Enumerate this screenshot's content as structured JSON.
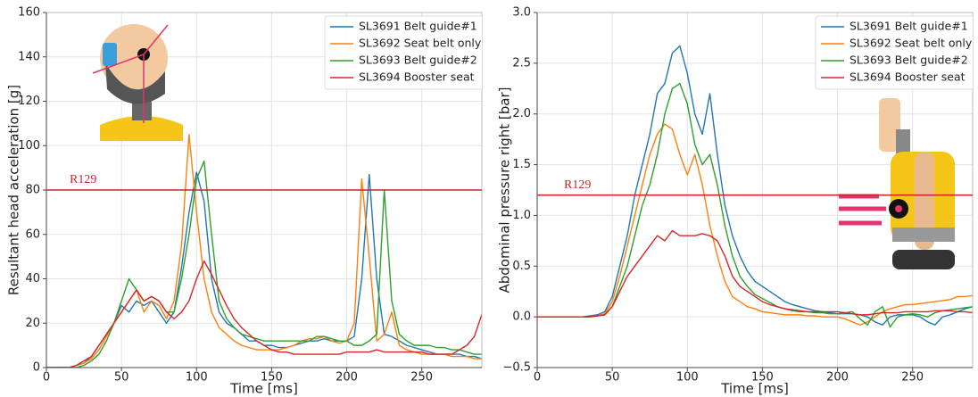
{
  "chart_data": [
    {
      "type": "line",
      "xlabel": "Time [ms]",
      "ylabel": "Resultant head acceleration [g]",
      "x": [
        0,
        5,
        10,
        15,
        20,
        25,
        30,
        35,
        40,
        45,
        50,
        55,
        60,
        65,
        70,
        75,
        80,
        85,
        90,
        95,
        100,
        105,
        110,
        115,
        120,
        125,
        130,
        135,
        140,
        145,
        150,
        155,
        160,
        165,
        170,
        175,
        180,
        185,
        190,
        195,
        200,
        205,
        210,
        215,
        220,
        225,
        230,
        235,
        240,
        245,
        250,
        255,
        260,
        265,
        270,
        275,
        280,
        285,
        290
      ],
      "xlim": [
        0,
        290
      ],
      "xticks": [
        0,
        50,
        100,
        150,
        200,
        250
      ],
      "ylim": [
        0,
        160
      ],
      "yticks": [
        0,
        20,
        40,
        60,
        80,
        100,
        120,
        140,
        160
      ],
      "grid": true,
      "legend": "upper right",
      "reference": {
        "value": 80,
        "label": "R129",
        "color": "#c0282d"
      },
      "series": [
        {
          "name": "SL3691 Belt guide#1",
          "color": "#1f77b4",
          "values": [
            0,
            0,
            0,
            0,
            1,
            2,
            5,
            10,
            15,
            20,
            28,
            25,
            30,
            28,
            30,
            25,
            20,
            25,
            45,
            70,
            88,
            75,
            40,
            25,
            20,
            18,
            15,
            12,
            12,
            10,
            10,
            9,
            9,
            10,
            11,
            12,
            12,
            13,
            12,
            12,
            12,
            14,
            40,
            87,
            40,
            15,
            14,
            12,
            10,
            9,
            8,
            7,
            6,
            6,
            6,
            6,
            5,
            5,
            4
          ]
        },
        {
          "name": "SL3692 Seat belt only",
          "color": "#ff7f0e",
          "values": [
            0,
            0,
            0,
            0,
            1,
            2,
            4,
            8,
            14,
            20,
            25,
            30,
            35,
            25,
            30,
            28,
            22,
            30,
            55,
            105,
            70,
            40,
            25,
            18,
            15,
            12,
            10,
            9,
            8,
            8,
            8,
            8,
            9,
            10,
            12,
            13,
            13,
            14,
            12,
            11,
            12,
            20,
            85,
            50,
            12,
            15,
            25,
            10,
            8,
            7,
            6,
            6,
            6,
            6,
            5,
            5,
            5,
            4,
            4
          ]
        },
        {
          "name": "SL3693 Belt guide#2",
          "color": "#2ca02c",
          "values": [
            0,
            0,
            0,
            0,
            0,
            1,
            3,
            6,
            12,
            20,
            30,
            40,
            35,
            30,
            32,
            30,
            25,
            25,
            40,
            60,
            85,
            93,
            60,
            30,
            22,
            18,
            15,
            14,
            13,
            12,
            12,
            12,
            12,
            12,
            12,
            12,
            14,
            14,
            13,
            12,
            12,
            10,
            10,
            12,
            15,
            80,
            30,
            15,
            12,
            10,
            10,
            10,
            9,
            9,
            8,
            8,
            7,
            6,
            6
          ]
        },
        {
          "name": "SL3694 Booster seat",
          "color": "#d62728",
          "values": [
            0,
            0,
            0,
            0,
            1,
            3,
            5,
            10,
            15,
            20,
            25,
            30,
            35,
            30,
            32,
            30,
            25,
            22,
            25,
            30,
            40,
            48,
            42,
            35,
            28,
            22,
            18,
            15,
            12,
            10,
            8,
            7,
            7,
            6,
            6,
            6,
            6,
            6,
            6,
            6,
            7,
            7,
            7,
            7,
            8,
            7,
            7,
            7,
            7,
            7,
            7,
            6,
            6,
            6,
            6,
            8,
            10,
            14,
            24
          ]
        }
      ]
    },
    {
      "type": "line",
      "xlabel": "Time [ms]",
      "ylabel": "Abdominal pressure right [bar]",
      "x": [
        0,
        5,
        10,
        15,
        20,
        25,
        30,
        35,
        40,
        45,
        50,
        55,
        60,
        65,
        70,
        75,
        80,
        85,
        90,
        95,
        100,
        105,
        110,
        115,
        120,
        125,
        130,
        135,
        140,
        145,
        150,
        155,
        160,
        165,
        170,
        175,
        180,
        185,
        190,
        195,
        200,
        205,
        210,
        215,
        220,
        225,
        230,
        235,
        240,
        245,
        250,
        255,
        260,
        265,
        270,
        275,
        280,
        285,
        290
      ],
      "xlim": [
        0,
        290
      ],
      "xticks": [
        0,
        50,
        100,
        150,
        200,
        250
      ],
      "ylim": [
        -0.5,
        3.0
      ],
      "yticks": [
        {
          "value": -0.5,
          "label": "−0.5"
        },
        {
          "value": 0,
          "label": "0.0"
        },
        0.5,
        {
          "value": 1,
          "label": "1.0"
        },
        1.5,
        {
          "value": 2,
          "label": "2.0"
        },
        2.5,
        {
          "value": 3,
          "label": "3.0"
        }
      ],
      "grid": true,
      "legend": "upper right",
      "reference": {
        "value": 1.2,
        "label": "R129",
        "color": "#d62728"
      },
      "series": [
        {
          "name": "SL3691 Belt guide#1",
          "color": "#1f77b4",
          "values": [
            0,
            0,
            0,
            0,
            0,
            0,
            0,
            0.01,
            0.02,
            0.05,
            0.2,
            0.5,
            0.8,
            1.2,
            1.5,
            1.8,
            2.2,
            2.3,
            2.6,
            2.67,
            2.4,
            2.0,
            1.8,
            2.2,
            1.6,
            1.1,
            0.8,
            0.6,
            0.45,
            0.35,
            0.3,
            0.25,
            0.2,
            0.15,
            0.12,
            0.1,
            0.08,
            0.06,
            0.05,
            0.04,
            0.03,
            0.03,
            0.03,
            0.02,
            0,
            -0.05,
            -0.08,
            0,
            0.02,
            0.02,
            0.02,
            0,
            -0.05,
            -0.08,
            0,
            0.02,
            0.05,
            0.08,
            0.1
          ]
        },
        {
          "name": "SL3692 Seat belt only",
          "color": "#ff7f0e",
          "values": [
            0,
            0,
            0,
            0,
            0,
            0,
            0,
            0,
            0.01,
            0.03,
            0.15,
            0.4,
            0.7,
            1.0,
            1.3,
            1.6,
            1.8,
            1.9,
            1.85,
            1.6,
            1.4,
            1.6,
            1.3,
            0.9,
            0.6,
            0.35,
            0.2,
            0.15,
            0.1,
            0.08,
            0.05,
            0.04,
            0.03,
            0.02,
            0.02,
            0.02,
            0.01,
            0.01,
            0,
            0,
            0,
            -0.02,
            -0.05,
            -0.08,
            -0.05,
            0,
            0.05,
            0.08,
            0.1,
            0.12,
            0.12,
            0.13,
            0.14,
            0.15,
            0.16,
            0.17,
            0.2,
            0.2,
            0.21
          ]
        },
        {
          "name": "SL3693 Belt guide#2",
          "color": "#2ca02c",
          "values": [
            0,
            0,
            0,
            0,
            0,
            0,
            0,
            0,
            0.01,
            0.02,
            0.1,
            0.3,
            0.5,
            0.8,
            1.1,
            1.3,
            1.6,
            2.0,
            2.25,
            2.3,
            2.1,
            1.7,
            1.5,
            1.6,
            1.3,
            0.9,
            0.6,
            0.4,
            0.3,
            0.22,
            0.18,
            0.14,
            0.1,
            0.08,
            0.06,
            0.05,
            0.05,
            0.04,
            0.04,
            0.03,
            0.03,
            0.04,
            0.05,
            -0.02,
            -0.08,
            0.05,
            0.1,
            -0.1,
            0,
            0.02,
            0.03,
            0.02,
            0,
            0.04,
            0.06,
            0.07,
            0.08,
            0.09,
            0.1
          ]
        },
        {
          "name": "SL3694 Booster seat",
          "color": "#d62728",
          "values": [
            0,
            0,
            0,
            0,
            0,
            0,
            0,
            0,
            0.01,
            0.02,
            0.1,
            0.25,
            0.4,
            0.5,
            0.6,
            0.7,
            0.8,
            0.75,
            0.85,
            0.8,
            0.8,
            0.8,
            0.82,
            0.8,
            0.75,
            0.6,
            0.4,
            0.3,
            0.25,
            0.2,
            0.15,
            0.12,
            0.1,
            0.08,
            0.07,
            0.06,
            0.05,
            0.05,
            0.05,
            0.05,
            0.05,
            0.04,
            0.03,
            0.02,
            0.02,
            0.03,
            0.04,
            0.04,
            0.04,
            0.05,
            0.05,
            0.05,
            0.05,
            0.06,
            0.06,
            0.06,
            0.05,
            0.05,
            0.04
          ]
        }
      ]
    }
  ]
}
